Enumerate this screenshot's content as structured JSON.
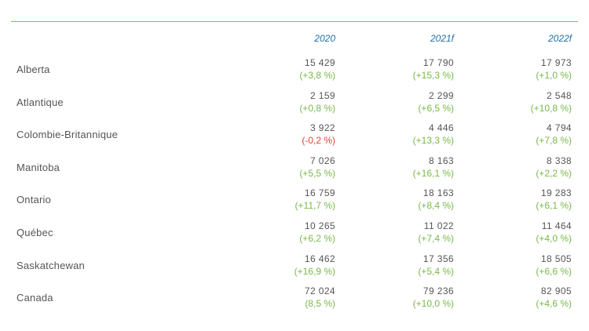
{
  "colors": {
    "rule": "#7cbf5a",
    "header": "#1f6fa8",
    "positive": "#79b84a",
    "negative": "#e8413b",
    "text": "#555555"
  },
  "columns": [
    "2020",
    "2021f",
    "2022f"
  ],
  "rows": [
    {
      "label": "Alberta",
      "cells": [
        {
          "value": "15 429",
          "change": "(+3,8 %)"
        },
        {
          "value": "17 790",
          "change": "(+15,3 %)"
        },
        {
          "value": "17 973",
          "change": "(+1,0 %)"
        }
      ]
    },
    {
      "label": "Atlantique",
      "cells": [
        {
          "value": "2 159",
          "change": "(+0,8 %)"
        },
        {
          "value": "2 299",
          "change": "(+6,5 %)"
        },
        {
          "value": "2 548",
          "change": "(+10,8 %)"
        }
      ]
    },
    {
      "label": "Colombie-Britannique",
      "cells": [
        {
          "value": "3 922",
          "change": "(-0,2 %)"
        },
        {
          "value": "4 446",
          "change": "(+13,3 %)"
        },
        {
          "value": "4 794",
          "change": "(+7,8 %)"
        }
      ]
    },
    {
      "label": "Manitoba",
      "cells": [
        {
          "value": "7 026",
          "change": "(+5,5 %)"
        },
        {
          "value": "8 163",
          "change": "(+16,1 %)"
        },
        {
          "value": "8 338",
          "change": "(+2,2 %)"
        }
      ]
    },
    {
      "label": "Ontario",
      "cells": [
        {
          "value": "16 759",
          "change": "(+11,7 %)"
        },
        {
          "value": "18 163",
          "change": "(+8,4 %)"
        },
        {
          "value": "19 283",
          "change": "(+6,1 %)"
        }
      ]
    },
    {
      "label": "Québec",
      "cells": [
        {
          "value": "10 265",
          "change": "(+6,2 %)"
        },
        {
          "value": "11 022",
          "change": "(+7,4 %)"
        },
        {
          "value": "11 464",
          "change": "(+4,0 %)"
        }
      ]
    },
    {
      "label": "Saskatchewan",
      "cells": [
        {
          "value": "16 462",
          "change": "(+16,9 %)"
        },
        {
          "value": "17 356",
          "change": "(+5,4 %)"
        },
        {
          "value": "18 505",
          "change": "(+6,6 %)"
        }
      ]
    },
    {
      "label": "Canada",
      "cells": [
        {
          "value": "72 024",
          "change": "(8,5 %)"
        },
        {
          "value": "79 236",
          "change": "(+10,0 %)"
        },
        {
          "value": "82 905",
          "change": "(+4,6 %)"
        }
      ]
    }
  ]
}
